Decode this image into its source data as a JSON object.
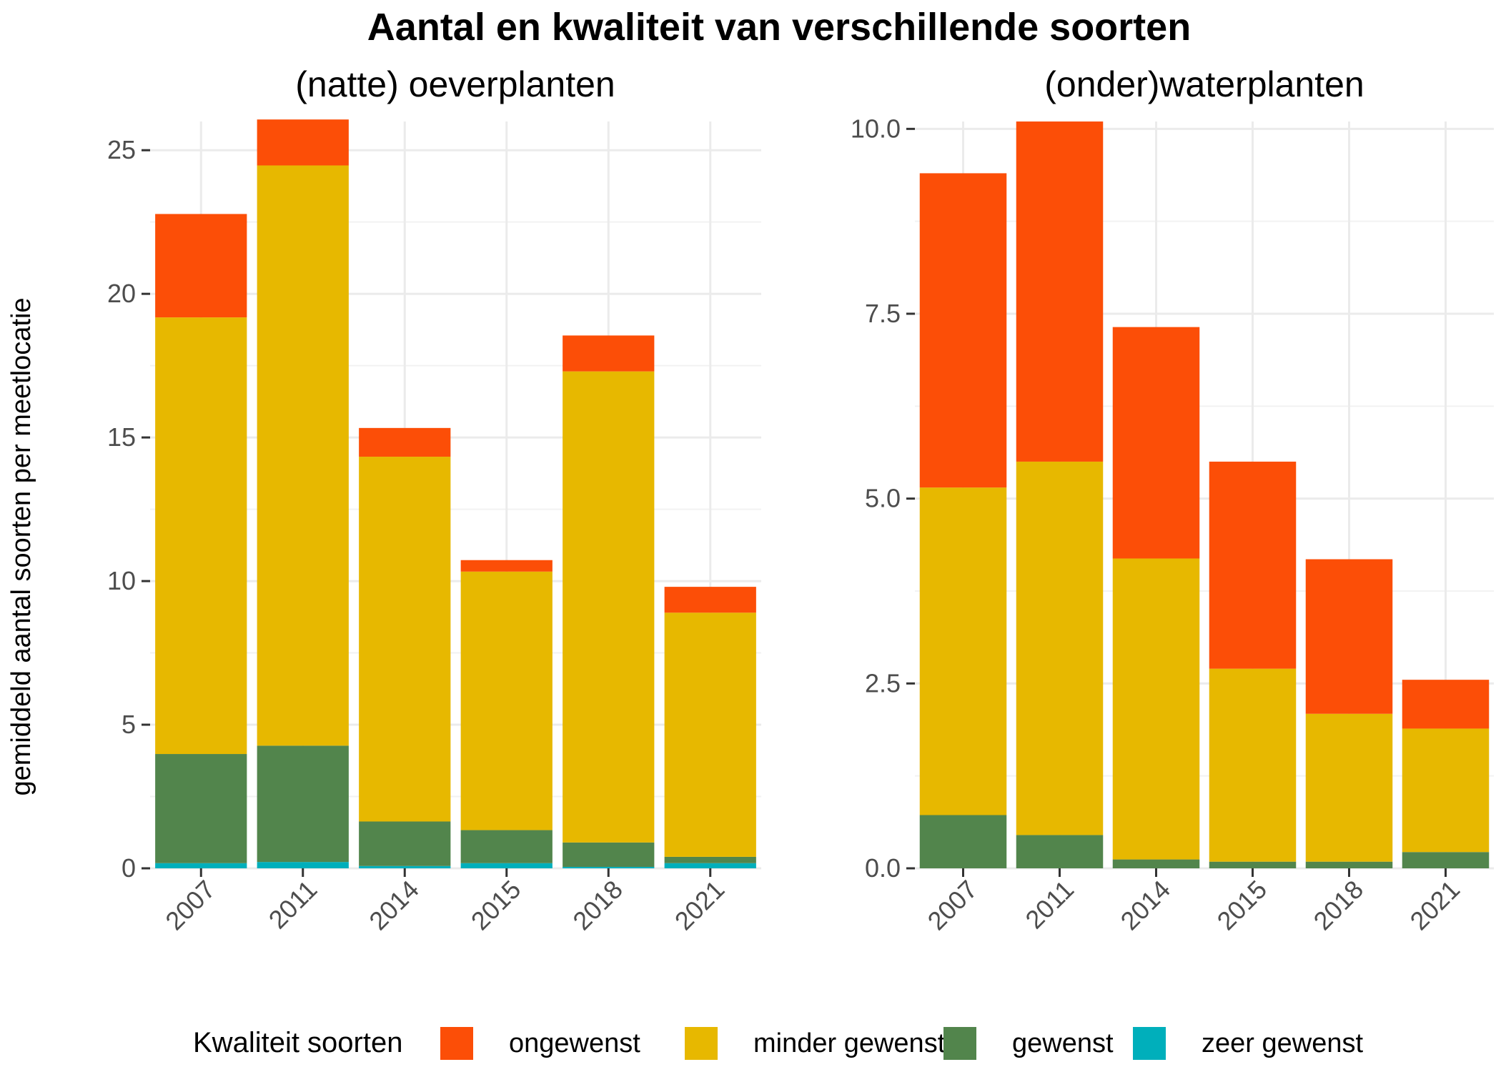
{
  "chart_data": {
    "type": "bar",
    "stacked": true,
    "title": "Aantal en kwaliteit van verschillende soorten",
    "ylabel": "gemiddeld aantal soorten per meetlocatie",
    "legend": {
      "title": "Kwaliteit soorten",
      "placement": "bottom",
      "entries": [
        {
          "name": "ongewenst",
          "color": "#FC4E07"
        },
        {
          "name": "minder gewenst",
          "color": "#E7B800"
        },
        {
          "name": "gewenst",
          "color": "#52854C"
        },
        {
          "name": "zeer gewenst",
          "color": "#00AFBB"
        }
      ]
    },
    "panels": [
      {
        "subtitle": "(natte) oeverplanten",
        "categories": [
          "2007",
          "2011",
          "2014",
          "2015",
          "2018",
          "2021"
        ],
        "ylim": [
          0,
          26
        ],
        "yticks": [
          0,
          5,
          10,
          15,
          20,
          25
        ],
        "ytick_labels": [
          "0",
          "5",
          "10",
          "15",
          "20",
          "25"
        ],
        "grid": true,
        "series": [
          {
            "name": "zeer gewenst",
            "color": "#00AFBB",
            "values": [
              0.18,
              0.22,
              0.08,
              0.18,
              0.05,
              0.18
            ]
          },
          {
            "name": "gewenst",
            "color": "#52854C",
            "values": [
              3.8,
              4.05,
              1.55,
              1.15,
              0.85,
              0.22
            ]
          },
          {
            "name": "minder gewenst",
            "color": "#E7B800",
            "values": [
              15.2,
              20.2,
              12.7,
              9.0,
              16.4,
              8.5
            ]
          },
          {
            "name": "ongewenst",
            "color": "#FC4E07",
            "values": [
              3.6,
              1.6,
              1.0,
              0.4,
              1.25,
              0.9
            ]
          }
        ]
      },
      {
        "subtitle": "(onder)waterplanten",
        "categories": [
          "2007",
          "2011",
          "2014",
          "2015",
          "2018",
          "2021"
        ],
        "ylim": [
          0,
          10.1
        ],
        "yticks": [
          0,
          2.5,
          5,
          7.5,
          10
        ],
        "ytick_labels": [
          "0.0",
          "2.5",
          "5.0",
          "7.5",
          "10.0"
        ],
        "grid": true,
        "series": [
          {
            "name": "zeer gewenst",
            "color": "#00AFBB",
            "values": [
              0,
              0,
              0,
              0,
              0,
              0
            ]
          },
          {
            "name": "gewenst",
            "color": "#52854C",
            "values": [
              0.72,
              0.45,
              0.12,
              0.09,
              0.09,
              0.22
            ]
          },
          {
            "name": "minder gewenst",
            "color": "#E7B800",
            "values": [
              4.43,
              5.05,
              4.07,
              2.61,
              2.0,
              1.67
            ]
          },
          {
            "name": "ongewenst",
            "color": "#FC4E07",
            "values": [
              4.25,
              4.6,
              3.13,
              2.8,
              2.09,
              0.66
            ]
          }
        ]
      }
    ]
  }
}
